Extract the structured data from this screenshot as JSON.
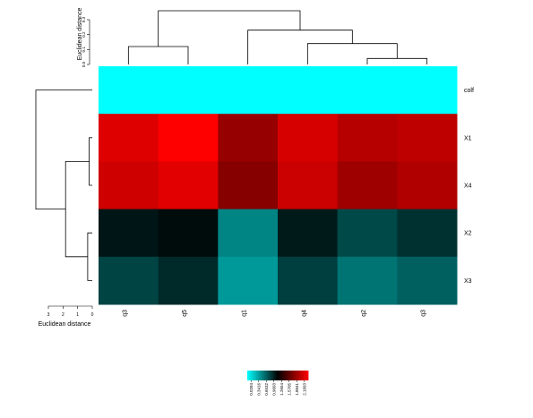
{
  "chart_data": {
    "type": "heatmap",
    "rows": [
      "colf",
      "X1",
      "X4",
      "X2",
      "X3"
    ],
    "columns": [
      "q3",
      "q5",
      "q1",
      "q4",
      "q2",
      "q3"
    ],
    "values": [
      [
        0.0284,
        0.0284,
        0.0284,
        0.0284,
        0.0284,
        0.0284
      ],
      [
        2.05,
        2.19,
        1.75,
        2.02,
        1.88,
        1.92
      ],
      [
        1.98,
        2.07,
        1.68,
        1.97,
        1.78,
        1.86
      ],
      [
        1.02,
        1.06,
        0.55,
        1.0,
        0.8,
        0.9
      ],
      [
        0.82,
        0.93,
        0.46,
        0.84,
        0.62,
        0.7
      ]
    ],
    "color_scale": {
      "colors": [
        "#00ffff",
        "#000000",
        "#ff0000"
      ],
      "range": [
        0.0284,
        2.1893
      ],
      "ticks": [
        "0.0284",
        "0.3416",
        "0.6532",
        "0.9603",
        "1.2654",
        "1.5705",
        "1.8841",
        "2.1893"
      ]
    },
    "top_dendrogram": {
      "label": "Euclidean distance",
      "axis_ticks": [
        "0.0",
        "0.1",
        "0.2",
        "0.3"
      ],
      "ylim": [
        0,
        0.3
      ],
      "merges": [
        {
          "a": "leaf:4",
          "b": "leaf:5",
          "height": 0.04
        },
        {
          "a": "leaf:3",
          "b": "node:0",
          "height": 0.14
        },
        {
          "a": "leaf:2",
          "b": "node:1",
          "height": 0.23
        },
        {
          "a": "leaf:0",
          "b": "leaf:1",
          "height": 0.12
        },
        {
          "a": "node:3",
          "b": "node:2",
          "height": 0.36
        }
      ]
    },
    "left_dendrogram": {
      "label": "Euclidean distance",
      "axis_ticks": [
        "3",
        "2",
        "1",
        "0"
      ],
      "xlim": [
        0,
        3
      ],
      "merges": [
        {
          "a": "leaf:1",
          "b": "leaf:2",
          "height": 0.2
        },
        {
          "a": "leaf:3",
          "b": "leaf:4",
          "height": 0.3
        },
        {
          "a": "node:0",
          "b": "node:1",
          "height": 1.75
        },
        {
          "a": "leaf:0",
          "b": "node:2",
          "height": 3.7
        }
      ]
    }
  }
}
